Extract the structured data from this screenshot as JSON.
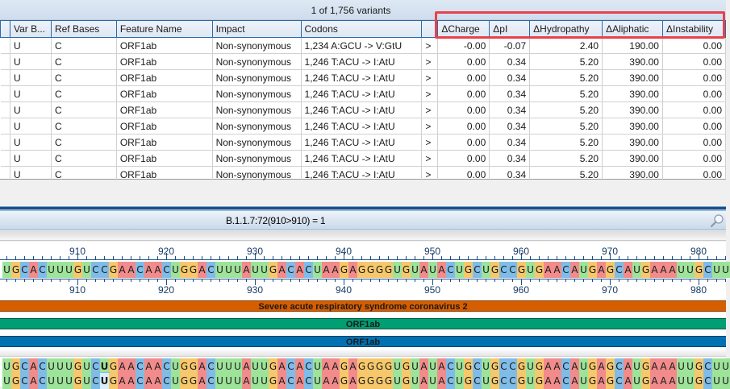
{
  "variant_count": "1 of 1,756 variants",
  "table": {
    "columns": [
      {
        "key": "blank",
        "label": "",
        "width": 12
      },
      {
        "key": "var_bases",
        "label": "Var B...",
        "width": 51
      },
      {
        "key": "ref_bases",
        "label": "Ref Bases",
        "width": 81
      },
      {
        "key": "feature_name",
        "label": "Feature Name",
        "width": 119
      },
      {
        "key": "impact",
        "label": "Impact",
        "width": 110
      },
      {
        "key": "codons",
        "label": "Codons",
        "width": 150
      },
      {
        "key": "arrow",
        "label": "",
        "width": 20
      },
      {
        "key": "d_charge",
        "label": "ΔCharge",
        "width": 64
      },
      {
        "key": "d_pi",
        "label": "ΔpI",
        "width": 50
      },
      {
        "key": "d_hydropathy",
        "label": "ΔHydropathy",
        "width": 90
      },
      {
        "key": "d_aliphatic",
        "label": "ΔAliphatic",
        "width": 75
      },
      {
        "key": "d_instability",
        "label": "ΔInstability",
        "width": 78
      }
    ],
    "rows": [
      {
        "var_bases": "U",
        "ref_bases": "C",
        "feature_name": "ORF1ab",
        "impact": "Non-synonymous",
        "codons": "1,234 A:GCU -> V:GtU",
        "arrow": ">",
        "d_charge": "-0.00",
        "d_pi": "-0.07",
        "d_hydropathy": "2.40",
        "d_aliphatic": "190.00",
        "d_instability": "0.00"
      },
      {
        "var_bases": "U",
        "ref_bases": "C",
        "feature_name": "ORF1ab",
        "impact": "Non-synonymous",
        "codons": "1,246 T:ACU -> I:AtU",
        "arrow": ">",
        "d_charge": "0.00",
        "d_pi": "0.34",
        "d_hydropathy": "5.20",
        "d_aliphatic": "390.00",
        "d_instability": "0.00"
      },
      {
        "var_bases": "U",
        "ref_bases": "C",
        "feature_name": "ORF1ab",
        "impact": "Non-synonymous",
        "codons": "1,246 T:ACU -> I:AtU",
        "arrow": ">",
        "d_charge": "0.00",
        "d_pi": "0.34",
        "d_hydropathy": "5.20",
        "d_aliphatic": "390.00",
        "d_instability": "0.00"
      },
      {
        "var_bases": "U",
        "ref_bases": "C",
        "feature_name": "ORF1ab",
        "impact": "Non-synonymous",
        "codons": "1,246 T:ACU -> I:AtU",
        "arrow": ">",
        "d_charge": "0.00",
        "d_pi": "0.34",
        "d_hydropathy": "5.20",
        "d_aliphatic": "390.00",
        "d_instability": "0.00"
      },
      {
        "var_bases": "U",
        "ref_bases": "C",
        "feature_name": "ORF1ab",
        "impact": "Non-synonymous",
        "codons": "1,246 T:ACU -> I:AtU",
        "arrow": ">",
        "d_charge": "0.00",
        "d_pi": "0.34",
        "d_hydropathy": "5.20",
        "d_aliphatic": "390.00",
        "d_instability": "0.00"
      },
      {
        "var_bases": "U",
        "ref_bases": "C",
        "feature_name": "ORF1ab",
        "impact": "Non-synonymous",
        "codons": "1,246 T:ACU -> I:AtU",
        "arrow": ">",
        "d_charge": "0.00",
        "d_pi": "0.34",
        "d_hydropathy": "5.20",
        "d_aliphatic": "390.00",
        "d_instability": "0.00"
      },
      {
        "var_bases": "U",
        "ref_bases": "C",
        "feature_name": "ORF1ab",
        "impact": "Non-synonymous",
        "codons": "1,246 T:ACU -> I:AtU",
        "arrow": ">",
        "d_charge": "0.00",
        "d_pi": "0.34",
        "d_hydropathy": "5.20",
        "d_aliphatic": "390.00",
        "d_instability": "0.00"
      },
      {
        "var_bases": "U",
        "ref_bases": "C",
        "feature_name": "ORF1ab",
        "impact": "Non-synonymous",
        "codons": "1,246 T:ACU -> I:AtU",
        "arrow": ">",
        "d_charge": "0.00",
        "d_pi": "0.34",
        "d_hydropathy": "5.20",
        "d_aliphatic": "390.00",
        "d_instability": "0.00"
      },
      {
        "var_bases": "U",
        "ref_bases": "C",
        "feature_name": "ORF1ab",
        "impact": "Non-synonymous",
        "codons": "1,246 T:ACU -> I:AtU",
        "arrow": ">",
        "d_charge": "0.00",
        "d_pi": "0.34",
        "d_hydropathy": "5.20",
        "d_aliphatic": "390.00",
        "d_instability": "0.00"
      }
    ]
  },
  "sequence_view": {
    "title": "B.1.1.7:72(910>910) = 1",
    "search_icon": "magnifier-icon",
    "ruler_labels": [
      "910",
      "920",
      "930",
      "940",
      "950",
      "960",
      "970",
      "980"
    ],
    "reference_sequence": "UGCACUUUGUCCGAACAACUGGACUUUAUUGACACUAAGAGGGGUGUAUACUGCUGCCGUGAACAUGAGCAUGAAAUUGCUU",
    "variant_sequence": "UGCACUUUGUCUGAACAACUGGACUUUAUUGACACUAAGAGGGGUGUAUACUGCUGCCGUGAACAUGAGCAUGAAAUUGCUU",
    "variant_index": 11,
    "annotations": [
      {
        "label": "Severe acute respiratory syndrome coronavirus 2",
        "color": "#d55e00"
      },
      {
        "label": "ORF1ab",
        "color": "#009e73"
      },
      {
        "label": "ORF1ab",
        "color": "#0072b2"
      }
    ],
    "base_colors": {
      "A": "#f28b8b",
      "C": "#7fbde8",
      "G": "#f7c86b",
      "U": "#9ee39a"
    }
  }
}
